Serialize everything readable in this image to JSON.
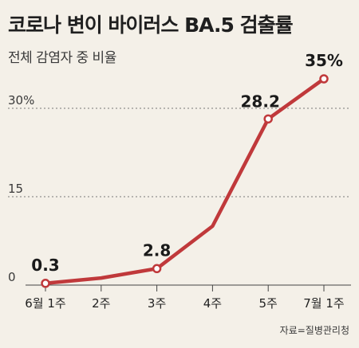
{
  "title": "코로나 변이 바이러스 BA.5 검출률",
  "subtitle": "전체 감염자 중 비율",
  "source": "자료=질병관리청",
  "chart_data": {
    "type": "line",
    "title": "코로나 변이 바이러스 BA.5 검출률",
    "subtitle": "전체 감염자 중 비율",
    "categories": [
      "6월 1주",
      "2주",
      "3주",
      "4주",
      "5주",
      "7월 1주"
    ],
    "series": [
      {
        "values": [
          0.3,
          1.2,
          2.8,
          10.0,
          28.2,
          35.0
        ]
      }
    ],
    "data_labels": [
      "0.3",
      "",
      "2.8",
      "",
      "28.2",
      "35%"
    ],
    "markers": [
      true,
      false,
      true,
      false,
      true,
      true
    ],
    "y_ticks": [
      {
        "value": 0,
        "label": "0"
      },
      {
        "value": 15,
        "label": "15"
      },
      {
        "value": 30,
        "label": "30%"
      }
    ],
    "ylim": [
      0,
      35
    ],
    "grid": "horizontal-dotted",
    "line_color": "#c0393b",
    "xlabel": "",
    "ylabel": ""
  }
}
